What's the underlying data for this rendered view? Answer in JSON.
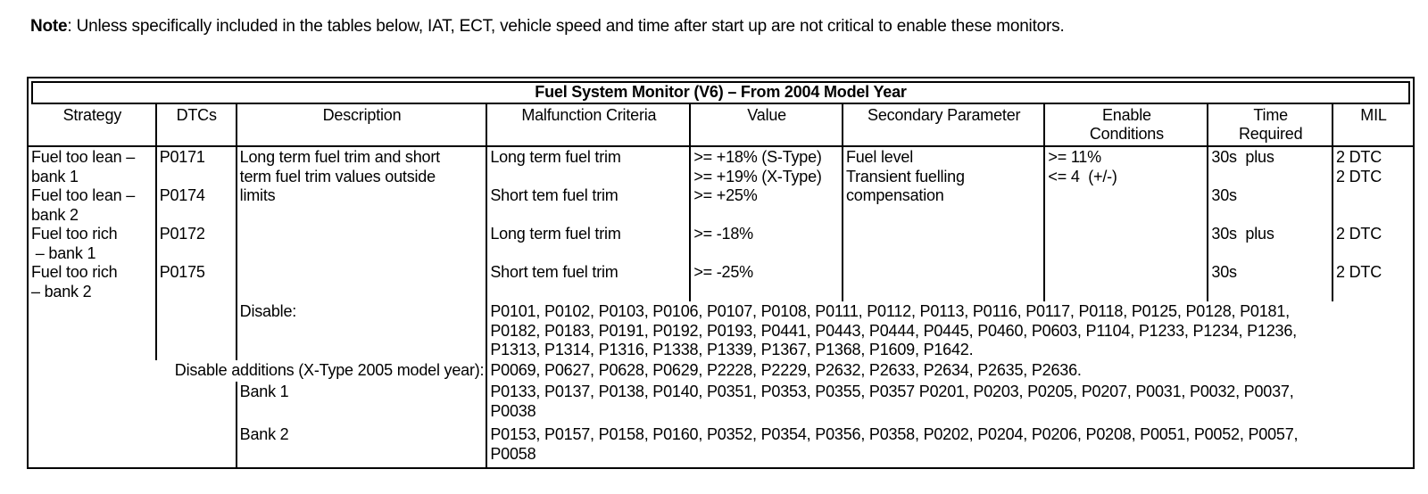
{
  "note": {
    "label": "Note",
    "text": ": Unless specifically included in the tables below, IAT, ECT, vehicle speed and time after start up are not critical to enable these monitors."
  },
  "table": {
    "title": "Fuel System Monitor (V6) – From 2004 Model Year",
    "headers": [
      [
        "Strategy"
      ],
      [
        "DTCs"
      ],
      [
        "Description"
      ],
      [
        "Malfunction Criteria"
      ],
      [
        "Value"
      ],
      [
        "Secondary Parameter"
      ],
      [
        "Enable",
        "Conditions"
      ],
      [
        "Time",
        "Required"
      ],
      [
        "MIL"
      ]
    ],
    "body": {
      "strategy": [
        "Fuel too lean –",
        "bank 1",
        "Fuel too lean –",
        "bank 2",
        "Fuel too rich",
        " – bank 1",
        "Fuel too rich",
        "– bank 2"
      ],
      "dtcs": [
        "P0171",
        "",
        "P0174",
        "",
        "P0172",
        "",
        "P0175"
      ],
      "description": [
        "Long term fuel trim and short",
        "term fuel trim values outside",
        "limits"
      ],
      "malfunction": [
        "Long term fuel trim",
        "",
        "Short tem fuel trim",
        "",
        "Long term fuel trim",
        "",
        "Short tem fuel trim"
      ],
      "value": [
        ">= +18% (S-Type)",
        ">= +19% (X-Type)",
        ">= +25%",
        "",
        ">= -18%",
        "",
        ">= -25%"
      ],
      "secondary": [
        "Fuel level",
        "Transient fuelling",
        "compensation"
      ],
      "enable": [
        ">= 11%",
        "<= 4  (+/-)"
      ],
      "time": [
        "30s  plus",
        "",
        "30s",
        "",
        "30s  plus",
        "",
        "30s"
      ],
      "mil": [
        "2 DTC",
        "2 DTC",
        "",
        "",
        "2 DTC",
        "",
        "2 DTC"
      ]
    },
    "disable": {
      "label": "Disable:",
      "codes": [
        "P0101, P0102, P0103, P0106, P0107, P0108, P0111, P0112, P0113, P0116, P0117, P0118, P0125, P0128, P0181,",
        "P0182, P0183, P0191, P0192, P0193, P0441, P0443, P0444, P0445, P0460, P0603, P1104, P1233, P1234, P1236,",
        "P1313, P1314, P1316, P1338, P1339, P1367, P1368, P1609, P1642."
      ]
    },
    "disable_additions": {
      "label": "Disable additions (X-Type 2005 model year):",
      "codes": [
        "P0069, P0627, P0628, P0629, P2228, P2229, P2632, P2633, P2634, P2635, P2636."
      ]
    },
    "bank1": {
      "label": "Bank 1",
      "codes": [
        "P0133, P0137, P0138, P0140, P0351, P0353, P0355, P0357 P0201, P0203, P0205, P0207, P0031, P0032, P0037,",
        "P0038"
      ]
    },
    "bank2": {
      "label": "Bank 2",
      "codes": [
        "P0153, P0157, P0158, P0160, P0352, P0354, P0356, P0358, P0202, P0204, P0206, P0208, P0051, P0052, P0057,",
        "P0058"
      ]
    }
  }
}
